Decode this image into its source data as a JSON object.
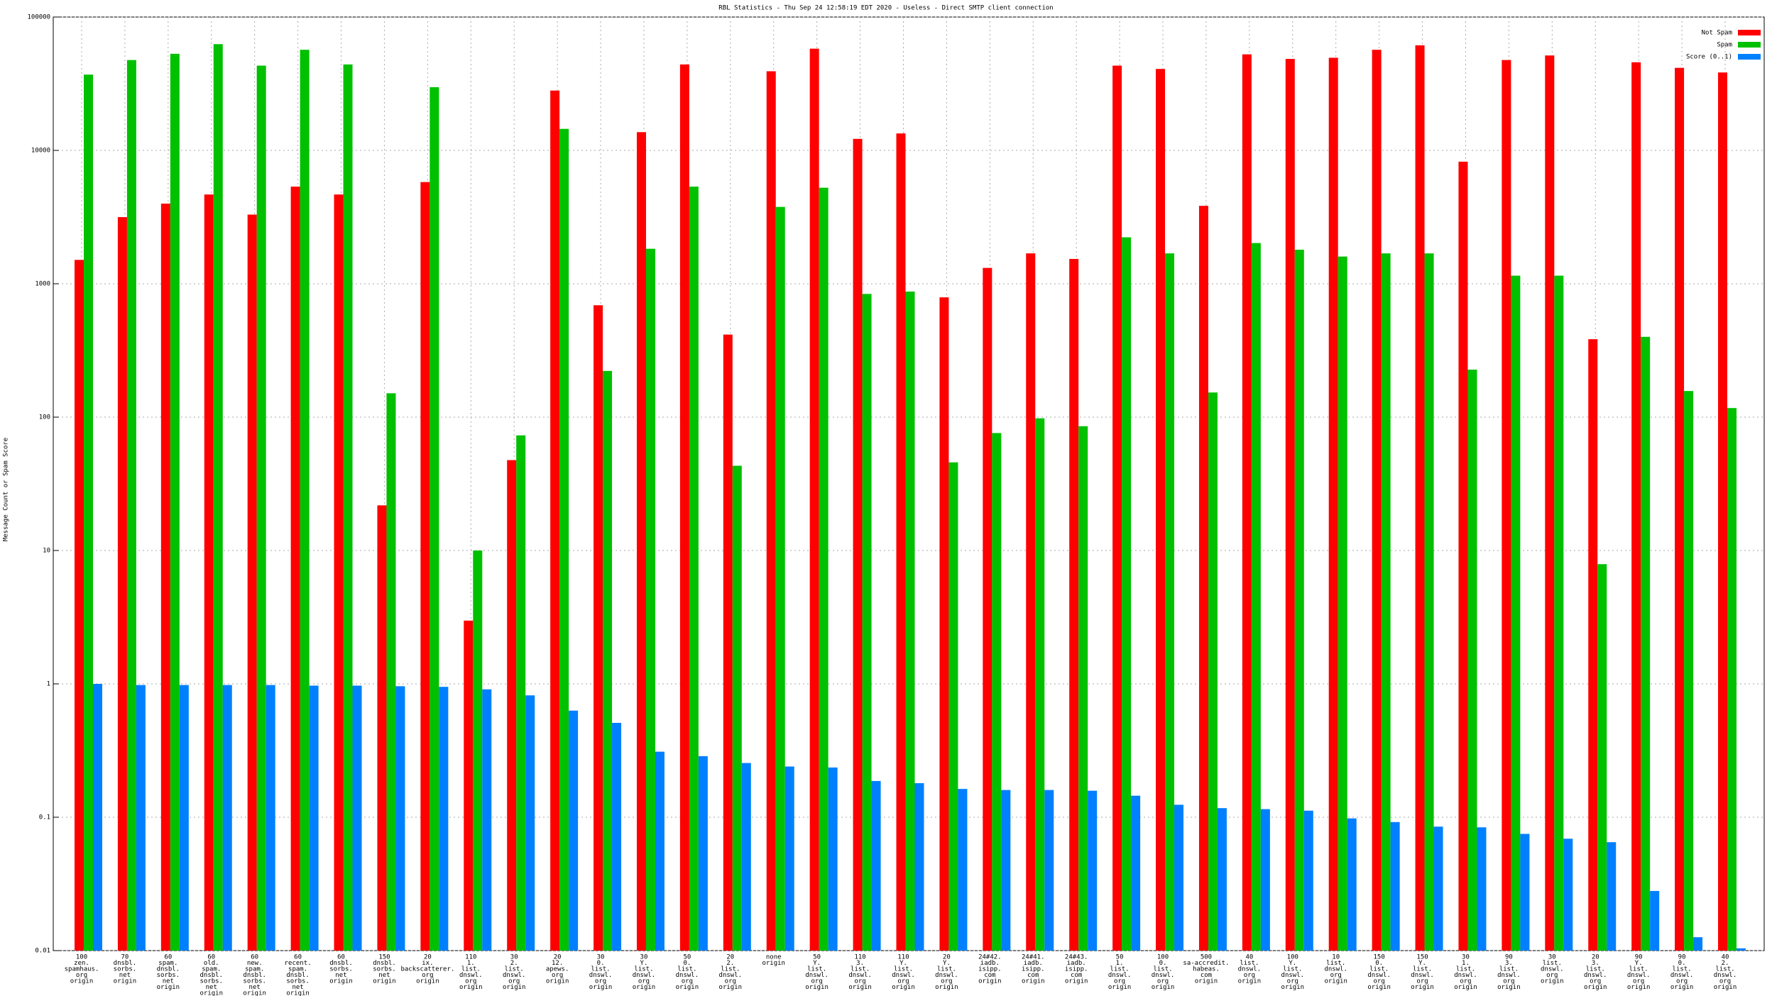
{
  "chart_data": {
    "type": "bar",
    "title": "RBL Statistics - Thu Sep 24 12:58:19 EDT 2020 - Useless - Direct SMTP client connection",
    "y_label": "Message Count or Spam Score",
    "log_scale": true,
    "grid": true,
    "legend": "top-right",
    "ylim": [
      0.01,
      100000
    ],
    "yticks": [
      0.01,
      0.1,
      1,
      10,
      100,
      1000,
      10000,
      100000
    ],
    "categories": [
      [
        "100",
        "zen.",
        "spamhaus.",
        "org",
        "origin"
      ],
      [
        "70",
        "dnsbl.",
        "sorbs.",
        "net",
        "origin"
      ],
      [
        "60",
        "spam.",
        "dnsbl.",
        "sorbs.",
        "net",
        "origin"
      ],
      [
        "60",
        "old.",
        "spam.",
        "dnsbl.",
        "sorbs.",
        "net",
        "origin"
      ],
      [
        "60",
        "new.",
        "spam.",
        "dnsbl.",
        "sorbs.",
        "net",
        "origin"
      ],
      [
        "60",
        "recent.",
        "spam.",
        "dnsbl.",
        "sorbs.",
        "net",
        "origin"
      ],
      [
        "60",
        "dnsbl.",
        "sorbs.",
        "net",
        "origin"
      ],
      [
        "150",
        "dnsbl.",
        "sorbs.",
        "net",
        "origin"
      ],
      [
        "20",
        "ix.",
        "backscatterer.",
        "org",
        "origin"
      ],
      [
        "110",
        "1.",
        "list.",
        "dnswl.",
        "org",
        "origin"
      ],
      [
        "30",
        "2.",
        "list.",
        "dnswl.",
        "org",
        "origin"
      ],
      [
        "20",
        "12.",
        "apews.",
        "org",
        "origin"
      ],
      [
        "30",
        "0.",
        "list.",
        "dnswl.",
        "org",
        "origin"
      ],
      [
        "30",
        "Y.",
        "list.",
        "dnswl.",
        "org",
        "origin"
      ],
      [
        "50",
        "0.",
        "list.",
        "dnswl.",
        "org",
        "origin"
      ],
      [
        "20",
        "2.",
        "list.",
        "dnswl.",
        "org",
        "origin"
      ],
      [
        "none",
        "origin"
      ],
      [
        "50",
        "Y.",
        "list.",
        "dnswl.",
        "org",
        "origin"
      ],
      [
        "110",
        "3.",
        "list.",
        "dnswl.",
        "org",
        "origin"
      ],
      [
        "110",
        "Y.",
        "list.",
        "dnswl.",
        "org",
        "origin"
      ],
      [
        "20",
        "Y.",
        "list.",
        "dnswl.",
        "org",
        "origin"
      ],
      [
        "24#42.",
        "iadb.",
        "isipp.",
        "com",
        "origin"
      ],
      [
        "24#41.",
        "iadb.",
        "isipp.",
        "com",
        "origin"
      ],
      [
        "24#43.",
        "iadb.",
        "isipp.",
        "com",
        "origin"
      ],
      [
        "50",
        "1.",
        "list.",
        "dnswl.",
        "org",
        "origin"
      ],
      [
        "100",
        "0.",
        "list.",
        "dnswl.",
        "org",
        "origin"
      ],
      [
        "500",
        "sa-accredit.",
        "habeas.",
        "com",
        "origin"
      ],
      [
        "40",
        "list.",
        "dnswl.",
        "org",
        "origin"
      ],
      [
        "100",
        "Y.",
        "list.",
        "dnswl.",
        "org",
        "origin"
      ],
      [
        "10",
        "list.",
        "dnswl.",
        "org",
        "origin"
      ],
      [
        "150",
        "0.",
        "list.",
        "dnswl.",
        "org",
        "origin"
      ],
      [
        "150",
        "Y.",
        "list.",
        "dnswl.",
        "org",
        "origin"
      ],
      [
        "30",
        "1.",
        "list.",
        "dnswl.",
        "org",
        "origin"
      ],
      [
        "90",
        "3.",
        "list.",
        "dnswl.",
        "org",
        "origin"
      ],
      [
        "30",
        "list.",
        "dnswl.",
        "org",
        "origin"
      ],
      [
        "20",
        "3.",
        "list.",
        "dnswl.",
        "org",
        "origin"
      ],
      [
        "90",
        "Y.",
        "list.",
        "dnswl.",
        "org",
        "origin"
      ],
      [
        "90",
        "0.",
        "list.",
        "dnswl.",
        "org",
        "origin"
      ],
      [
        "40",
        "2.",
        "list.",
        "dnswl.",
        "org",
        "origin"
      ]
    ],
    "series": [
      {
        "name": "Not Spam",
        "color": "#ff0000",
        "values": [
          1510,
          3160,
          3990,
          4670,
          3300,
          5350,
          4670,
          21.8,
          5790,
          2.98,
          47.6,
          28100,
          690,
          13700,
          44100,
          416,
          39200,
          57900,
          12200,
          13400,
          791,
          1315,
          1690,
          1535,
          43200,
          40800,
          3840,
          52500,
          48500,
          49500,
          56800,
          61400,
          8230,
          47600,
          51500,
          384,
          45800,
          41600,
          38400
        ]
      },
      {
        "name": "Spam",
        "color": "#00c000",
        "values": [
          37000,
          47600,
          53000,
          62600,
          43200,
          56800,
          44100,
          151,
          29800,
          10,
          73,
          14500,
          222,
          1830,
          5350,
          43.2,
          3770,
          5250,
          839,
          874,
          45.8,
          76,
          98,
          85.5,
          2230,
          1690,
          153,
          2020,
          1800,
          1600,
          1690,
          1690,
          227,
          1150,
          1150,
          7.9,
          400,
          157,
          117
        ]
      },
      {
        "name": "Score (0..1)",
        "color": "#0080ff",
        "values": [
          1.0,
          0.98,
          0.98,
          0.98,
          0.98,
          0.97,
          0.97,
          0.96,
          0.95,
          0.91,
          0.82,
          0.63,
          0.51,
          0.31,
          0.287,
          0.255,
          0.24,
          0.236,
          0.187,
          0.18,
          0.163,
          0.16,
          0.16,
          0.158,
          0.145,
          0.124,
          0.117,
          0.115,
          0.112,
          0.098,
          0.092,
          0.085,
          0.084,
          0.075,
          0.069,
          0.065,
          0.028,
          0.0126,
          0.0104
        ]
      }
    ]
  }
}
